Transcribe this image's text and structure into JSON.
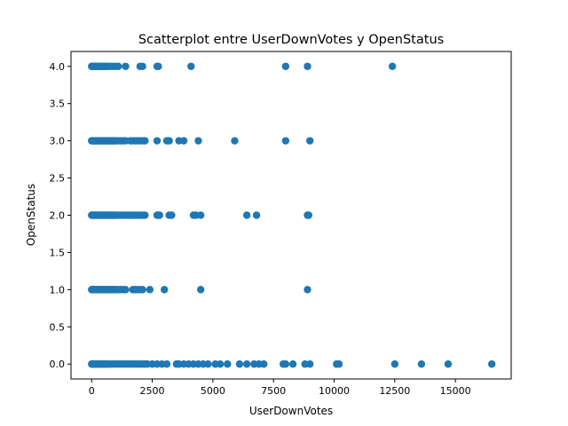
{
  "chart_data": {
    "type": "scatter",
    "title": "Scatterplot entre UserDownVotes y OpenStatus",
    "xlabel": "UserDownVotes",
    "ylabel": "OpenStatus",
    "xlim": [
      -850,
      17300
    ],
    "ylim": [
      -0.2,
      4.2
    ],
    "xticks": [
      0,
      2500,
      5000,
      7500,
      10000,
      12500,
      15000
    ],
    "xtick_labels": [
      "0",
      "2500",
      "5000",
      "7500",
      "10000",
      "12500",
      "15000"
    ],
    "yticks": [
      0.0,
      0.5,
      1.0,
      1.5,
      2.0,
      2.5,
      3.0,
      3.5,
      4.0
    ],
    "ytick_labels": [
      "0.0",
      "0.5",
      "1.0",
      "1.5",
      "2.0",
      "2.5",
      "3.0",
      "3.5",
      "4.0"
    ],
    "grid": false,
    "marker_color": "#1f77b4",
    "series": [
      {
        "x": [
          0,
          20,
          50,
          80,
          120,
          160,
          200,
          250,
          300,
          350,
          400,
          450,
          500,
          550,
          600,
          650,
          700,
          800,
          900,
          1000,
          1100,
          1200,
          1300,
          1400,
          1500,
          1600,
          1700,
          1800,
          1900,
          2000,
          2100,
          2200,
          2300,
          2500,
          2700,
          2900,
          3100,
          3500,
          3600,
          3800,
          4000,
          4200,
          4400,
          4600,
          4800,
          5100,
          5300,
          5600,
          6100,
          6400,
          6700,
          6900,
          7100,
          7900,
          8000,
          8300,
          8800,
          9000,
          10100,
          10200,
          12500,
          13600,
          14700,
          16500
        ],
        "y": [
          0,
          0,
          0,
          0,
          0,
          0,
          0,
          0,
          0,
          0,
          0,
          0,
          0,
          0,
          0,
          0,
          0,
          0,
          0,
          0,
          0,
          0,
          0,
          0,
          0,
          0,
          0,
          0,
          0,
          0,
          0,
          0,
          0,
          0,
          0,
          0,
          0,
          0,
          0,
          0,
          0,
          0,
          0,
          0,
          0,
          0,
          0,
          0,
          0,
          0,
          0,
          0,
          0,
          0,
          0,
          0,
          0,
          0,
          0,
          0,
          0,
          0,
          0,
          0
        ]
      },
      {
        "x": [
          0,
          30,
          70,
          110,
          150,
          200,
          250,
          300,
          350,
          400,
          450,
          500,
          550,
          600,
          650,
          700,
          750,
          800,
          850,
          900,
          950,
          1000,
          1100,
          1200,
          1300,
          1400,
          1700,
          1800,
          1900,
          2000,
          2100,
          2400,
          3000,
          4500,
          8900
        ],
        "y": [
          1,
          1,
          1,
          1,
          1,
          1,
          1,
          1,
          1,
          1,
          1,
          1,
          1,
          1,
          1,
          1,
          1,
          1,
          1,
          1,
          1,
          1,
          1,
          1,
          1,
          1,
          1,
          1,
          1,
          1,
          1,
          1,
          1,
          1,
          1
        ]
      },
      {
        "x": [
          0,
          30,
          70,
          110,
          150,
          200,
          250,
          300,
          350,
          400,
          450,
          500,
          550,
          600,
          650,
          700,
          750,
          800,
          850,
          900,
          950,
          1000,
          1100,
          1200,
          1300,
          1400,
          1500,
          1600,
          1700,
          1800,
          1900,
          2000,
          2100,
          2200,
          2700,
          2750,
          2800,
          3200,
          3300,
          4200,
          4300,
          4500,
          6400,
          6800,
          8900,
          8950
        ],
        "y": [
          2,
          2,
          2,
          2,
          2,
          2,
          2,
          2,
          2,
          2,
          2,
          2,
          2,
          2,
          2,
          2,
          2,
          2,
          2,
          2,
          2,
          2,
          2,
          2,
          2,
          2,
          2,
          2,
          2,
          2,
          2,
          2,
          2,
          2,
          2,
          2,
          2,
          2,
          2,
          2,
          2,
          2,
          2,
          2,
          2,
          2
        ]
      },
      {
        "x": [
          0,
          30,
          70,
          110,
          150,
          200,
          250,
          300,
          350,
          400,
          450,
          500,
          550,
          600,
          650,
          700,
          750,
          800,
          850,
          900,
          950,
          1000,
          1100,
          1200,
          1300,
          1400,
          1600,
          1700,
          1800,
          1900,
          2000,
          2100,
          2200,
          2700,
          3100,
          3200,
          3600,
          3800,
          4400,
          5900,
          8000,
          9000
        ],
        "y": [
          3,
          3,
          3,
          3,
          3,
          3,
          3,
          3,
          3,
          3,
          3,
          3,
          3,
          3,
          3,
          3,
          3,
          3,
          3,
          3,
          3,
          3,
          3,
          3,
          3,
          3,
          3,
          3,
          3,
          3,
          3,
          3,
          3,
          3,
          3,
          3,
          3,
          3,
          3,
          3,
          3,
          3
        ]
      },
      {
        "x": [
          0,
          40,
          80,
          120,
          160,
          200,
          250,
          300,
          350,
          400,
          450,
          500,
          550,
          600,
          650,
          700,
          800,
          900,
          1000,
          1100,
          1400,
          2000,
          2100,
          2700,
          2750,
          4100,
          8000,
          8900,
          12400
        ],
        "y": [
          4,
          4,
          4,
          4,
          4,
          4,
          4,
          4,
          4,
          4,
          4,
          4,
          4,
          4,
          4,
          4,
          4,
          4,
          4,
          4,
          4,
          4,
          4,
          4,
          4,
          4,
          4,
          4,
          4
        ]
      }
    ]
  }
}
